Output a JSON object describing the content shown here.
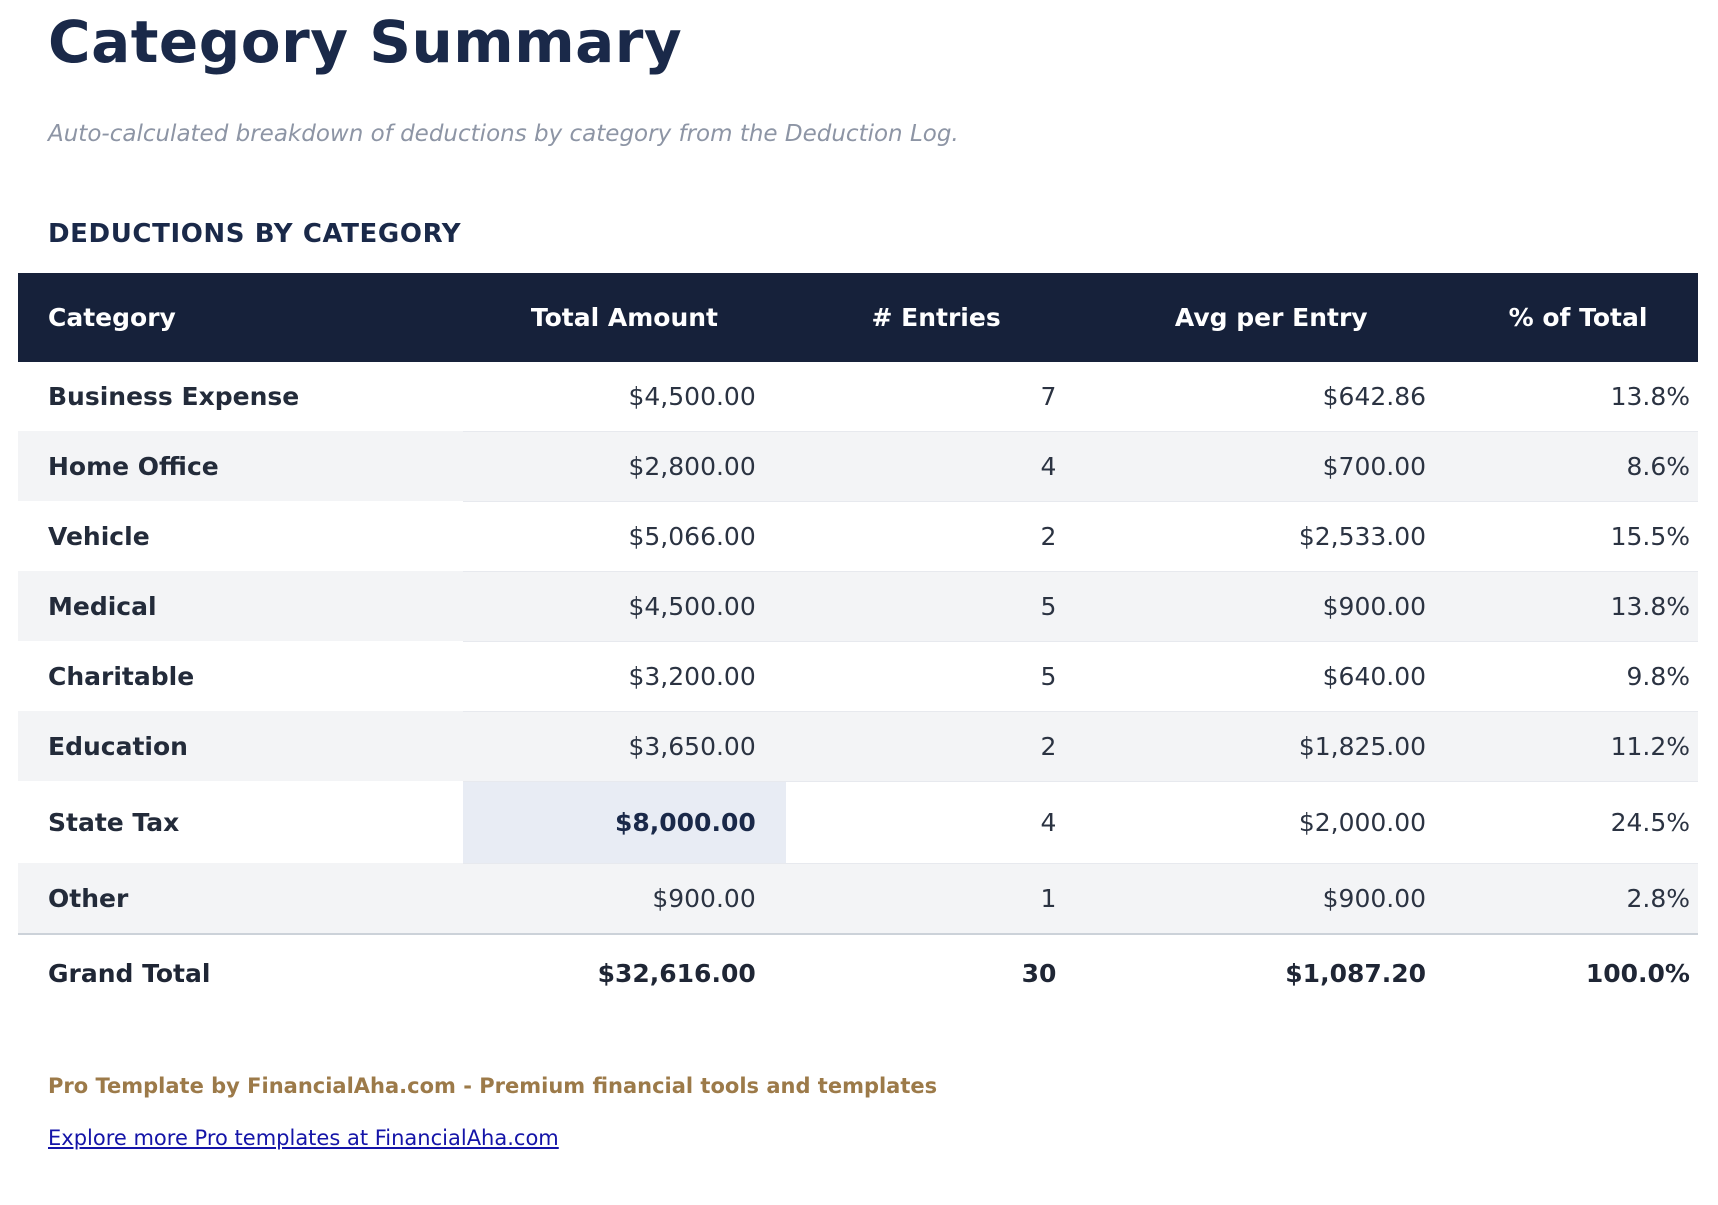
{
  "page": {
    "title": "Category Summary",
    "subtitle": "Auto-calculated breakdown of deductions by category from the Deduction Log.",
    "section_heading": "DEDUCTIONS BY CATEGORY"
  },
  "table": {
    "columns": [
      "Category",
      "Total Amount",
      "# Entries",
      "Avg per Entry",
      "% of Total"
    ],
    "rows": [
      {
        "category": "Business Expense",
        "total": "$4,500.00",
        "entries": "7",
        "avg": "$642.86",
        "pct": "13.8%",
        "total_highlighted": false
      },
      {
        "category": "Home Office",
        "total": "$2,800.00",
        "entries": "4",
        "avg": "$700.00",
        "pct": "8.6%",
        "total_highlighted": false
      },
      {
        "category": "Vehicle",
        "total": "$5,066.00",
        "entries": "2",
        "avg": "$2,533.00",
        "pct": "15.5%",
        "total_highlighted": false
      },
      {
        "category": "Medical",
        "total": "$4,500.00",
        "entries": "5",
        "avg": "$900.00",
        "pct": "13.8%",
        "total_highlighted": false
      },
      {
        "category": "Charitable",
        "total": "$3,200.00",
        "entries": "5",
        "avg": "$640.00",
        "pct": "9.8%",
        "total_highlighted": false
      },
      {
        "category": "Education",
        "total": "$3,650.00",
        "entries": "2",
        "avg": "$1,825.00",
        "pct": "11.2%",
        "total_highlighted": false
      },
      {
        "category": "State Tax",
        "total": "$8,000.00",
        "entries": "4",
        "avg": "$2,000.00",
        "pct": "24.5%",
        "total_highlighted": true
      },
      {
        "category": "Other",
        "total": "$900.00",
        "entries": "1",
        "avg": "$900.00",
        "pct": "2.8%",
        "total_highlighted": false
      }
    ],
    "grand_total": {
      "category": "Grand Total",
      "total": "$32,616.00",
      "entries": "30",
      "avg": "$1,087.20",
      "pct": "100.0%"
    }
  },
  "footer": {
    "branding": "Pro Template by FinancialAha.com - Premium financial tools and templates",
    "link": "Explore more Pro templates at FinancialAha.com"
  },
  "colors": {
    "header_bg": "#16213a",
    "accent_navy": "#1a2949",
    "row_stripe": "#f3f4f6",
    "highlight_cell": "#e8ecf4",
    "brand_brown": "#9c7a49",
    "link_blue": "#1414a8"
  }
}
